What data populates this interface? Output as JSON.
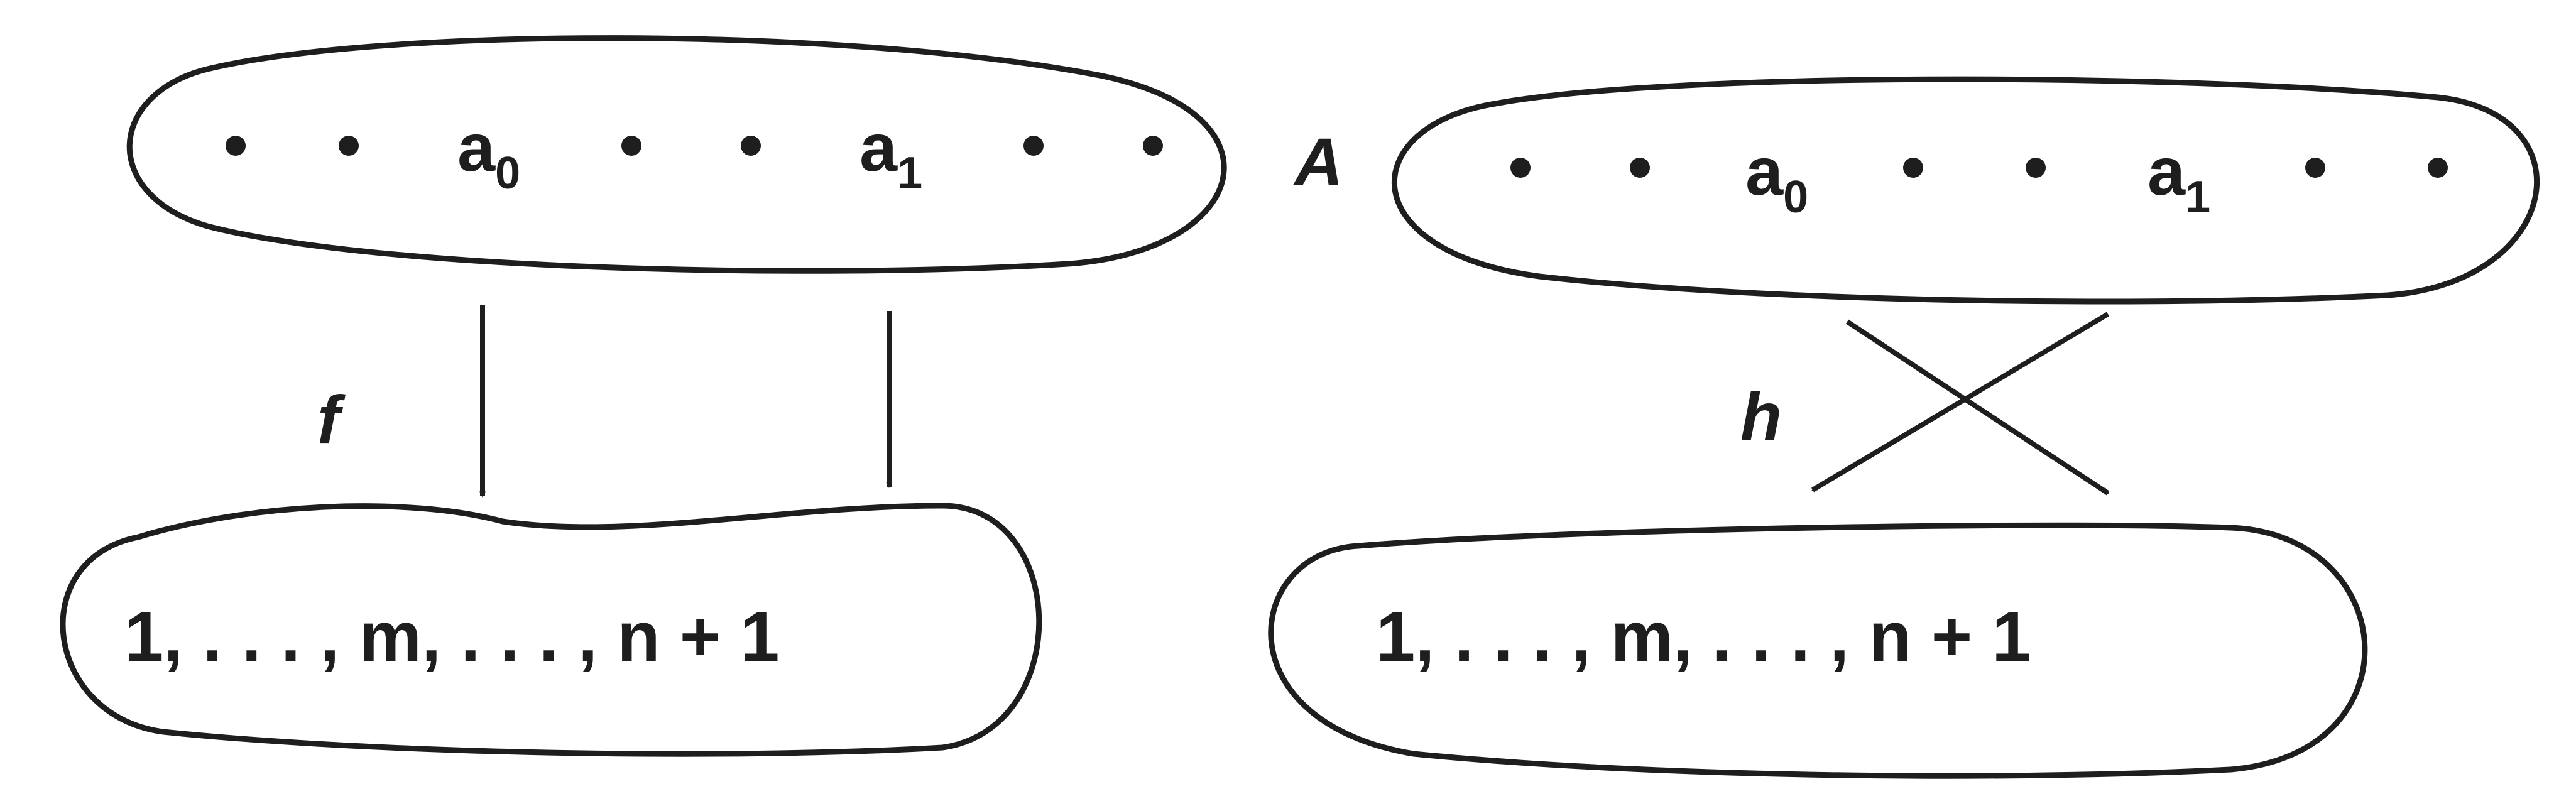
{
  "left": {
    "domain_elements": [
      "a",
      "a"
    ],
    "domain_subscripts": [
      "0",
      "1"
    ],
    "map_label": "f",
    "codomain_text": "1, . . . , m, . . . , n + 1"
  },
  "right": {
    "set_label": "A",
    "domain_elements": [
      "a",
      "a"
    ],
    "domain_subscripts": [
      "0",
      "1"
    ],
    "map_label": "h",
    "codomain_text": "1, . . . , m, . . . , n + 1"
  },
  "colors": {
    "ink": "#1e1e1e",
    "background": "#ffffff"
  }
}
